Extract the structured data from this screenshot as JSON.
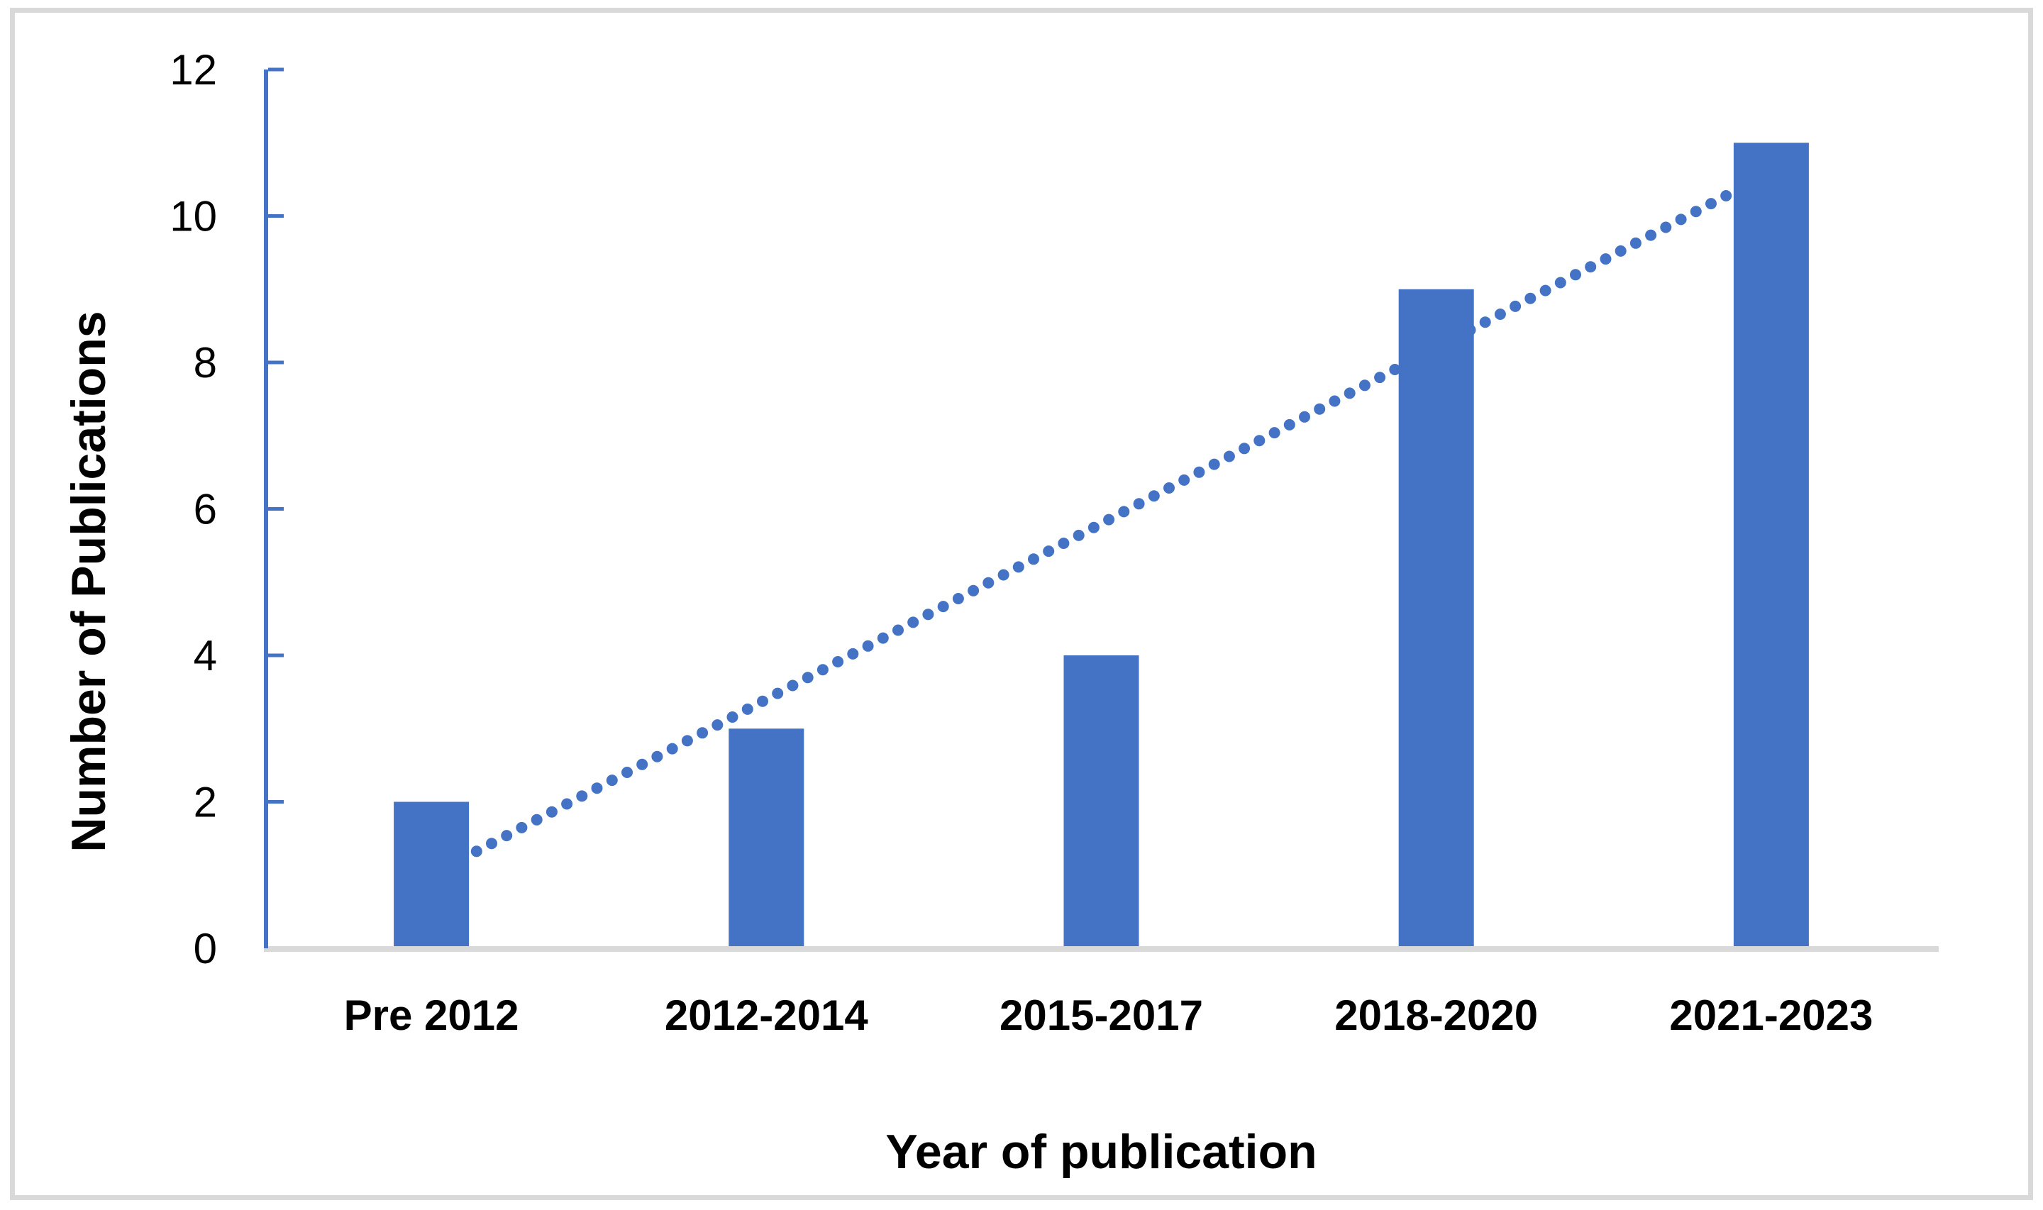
{
  "figure": {
    "y_axis_title": "Number of Publications",
    "x_axis_title": "Year of publication"
  },
  "chart_data": {
    "type": "bar",
    "title": "",
    "categories": [
      "Pre 2012",
      "2012-2014",
      "2015-2017",
      "2018-2020",
      "2021-2023"
    ],
    "values": [
      2,
      3,
      4,
      9,
      11
    ],
    "xlabel": "Year of publication",
    "ylabel": "Number of Publications",
    "ylim": [
      0,
      12
    ],
    "y_ticks": [
      "0",
      "2",
      "4",
      "6",
      "8",
      "10",
      "12"
    ],
    "grid": false,
    "legend": false,
    "colors": {
      "bar": "#4472C4",
      "axis_line": "#4472C4",
      "tick_mark": "#4472C4",
      "trendline": "#4472C4",
      "baseline": "#D9D9D9",
      "frame": "#D9D9D9",
      "text": "#000000",
      "background": "#FFFFFF"
    },
    "trendline": {
      "type": "linear",
      "style": "dotted",
      "start_value": 1.0,
      "end_value": 10.6
    }
  }
}
